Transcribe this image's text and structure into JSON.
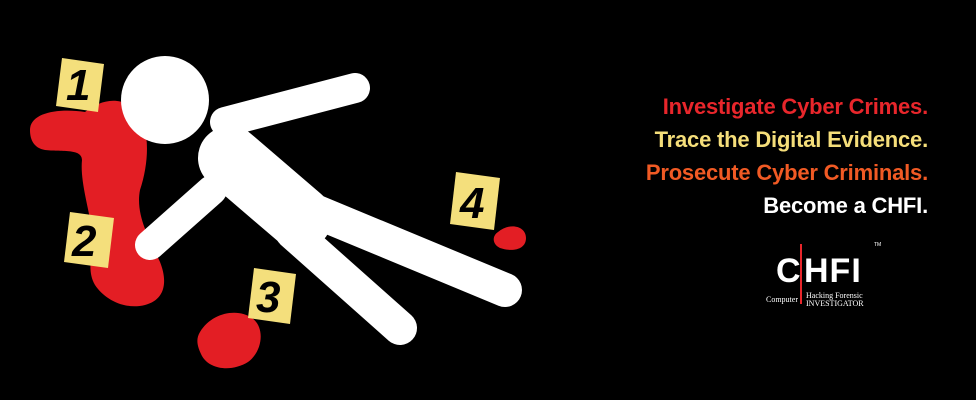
{
  "tagline": {
    "line1": "Investigate Cyber Crimes.",
    "line2": "Trace the Digital Evidence.",
    "line3": "Prosecute Cyber Criminals.",
    "line4": "Become a CHFI."
  },
  "colors": {
    "line1": "#e8262b",
    "line2": "#f5de7a",
    "line3": "#f15a24",
    "line4": "#ffffff",
    "blood": "#e31e24",
    "marker": "#f4df7c",
    "body_outline": "#ffffff",
    "background": "#000000"
  },
  "markers": [
    "1",
    "2",
    "3",
    "4"
  ],
  "logo": {
    "letter_c": "C",
    "letters_hfi": "HFI",
    "word_computer": "Computer",
    "words_hacking_forensic": "Hacking Forensic",
    "word_investigator": "INVESTIGATOR",
    "trademark": "TM"
  }
}
